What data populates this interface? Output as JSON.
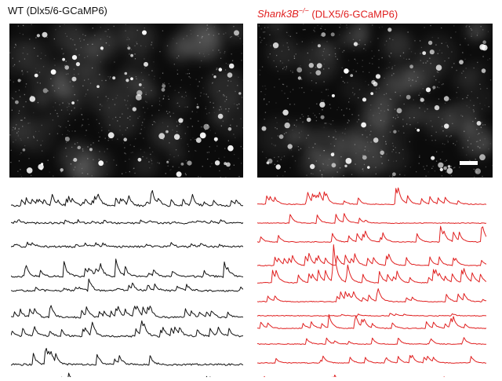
{
  "figure": {
    "left_panel": {
      "title": "WT (Dlx5/6-GCaMP6)",
      "trace_color": "#111111",
      "trace_count": 9
    },
    "right_panel": {
      "title_gene": "Shank3B",
      "title_superscript": "−/−",
      "title_rest": " (DLX5/6-GCaMP6)",
      "trace_color": "#e02020",
      "trace_count": 11
    },
    "micrograph_colors": {
      "background": "#0b0b0b",
      "cells": "#ffffff"
    },
    "scale_bar": true
  }
}
